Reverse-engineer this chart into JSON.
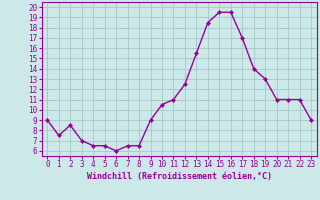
{
  "x": [
    0,
    1,
    2,
    3,
    4,
    5,
    6,
    7,
    8,
    9,
    10,
    11,
    12,
    13,
    14,
    15,
    16,
    17,
    18,
    19,
    20,
    21,
    22,
    23
  ],
  "y": [
    9,
    7.5,
    8.5,
    7,
    6.5,
    6.5,
    6,
    6.5,
    6.5,
    9,
    10.5,
    11,
    12.5,
    15.5,
    18.5,
    19.5,
    19.5,
    17,
    14,
    13,
    11,
    11,
    11,
    9
  ],
  "line_color": "#990099",
  "marker": "D",
  "markersize": 2.0,
  "linewidth": 1.0,
  "xlabel": "Windchill (Refroidissement éolien,°C)",
  "ylabel_ticks": [
    6,
    7,
    8,
    9,
    10,
    11,
    12,
    13,
    14,
    15,
    16,
    17,
    18,
    19,
    20
  ],
  "xtick_labels": [
    "0",
    "1",
    "2",
    "3",
    "4",
    "5",
    "6",
    "7",
    "8",
    "9",
    "10",
    "11",
    "12",
    "13",
    "14",
    "15",
    "16",
    "17",
    "18",
    "19",
    "20",
    "21",
    "22",
    "23"
  ],
  "ylim": [
    5.5,
    20.5
  ],
  "xlim": [
    -0.5,
    23.5
  ],
  "bg_color": "#cce8e8",
  "grid_color": "#aacccc",
  "tick_color": "#990099",
  "label_color": "#990099",
  "tick_fontsize": 5.5,
  "xlabel_fontsize": 6.0
}
